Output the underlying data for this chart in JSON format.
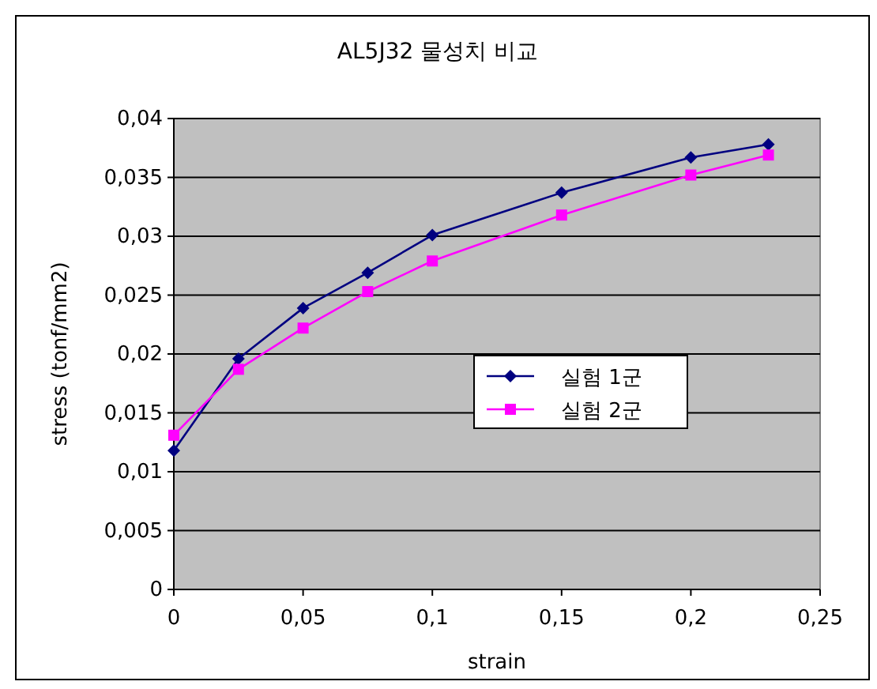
{
  "chart_data": {
    "type": "line",
    "title": "AL5J32 물성치 비교",
    "xlabel": "strain",
    "ylabel": "stress (tonf/mm2)",
    "xlim": [
      0,
      0.25
    ],
    "ylim": [
      0,
      0.04
    ],
    "xticks": [
      0,
      {
        "value": 0.05,
        "label": "0,05"
      },
      {
        "value": 0.1,
        "label": "0,1"
      },
      {
        "value": 0.15,
        "label": "0,15"
      },
      {
        "value": 0.2,
        "label": "0,2"
      },
      {
        "value": 0.25,
        "label": "0,25"
      }
    ],
    "yticks": [
      0,
      {
        "value": 0.005,
        "label": "0,005"
      },
      {
        "value": 0.01,
        "label": "0,01"
      },
      {
        "value": 0.015,
        "label": "0,015"
      },
      {
        "value": 0.02,
        "label": "0,02"
      },
      {
        "value": 0.025,
        "label": "0,025"
      },
      {
        "value": 0.03,
        "label": "0,03"
      },
      {
        "value": 0.035,
        "label": "0,035"
      },
      {
        "value": 0.04,
        "label": "0,04"
      }
    ],
    "grid": "y",
    "legend": "center",
    "series": [
      {
        "name": "실험 1군",
        "color": "#000080",
        "marker": "diamond",
        "x": [
          0,
          0.025,
          0.05,
          0.075,
          0.1,
          0.15,
          0.2,
          0.23
        ],
        "values": [
          0.0118,
          0.0196,
          0.0239,
          0.0269,
          0.0301,
          0.0337,
          0.0367,
          0.0378
        ]
      },
      {
        "name": "실험 2군",
        "color": "#ff00ff",
        "marker": "square",
        "x": [
          0,
          0.025,
          0.05,
          0.075,
          0.1,
          0.15,
          0.2,
          0.23
        ],
        "values": [
          0.0131,
          0.0187,
          0.0222,
          0.0253,
          0.0279,
          0.0318,
          0.0352,
          0.0369
        ]
      }
    ]
  }
}
